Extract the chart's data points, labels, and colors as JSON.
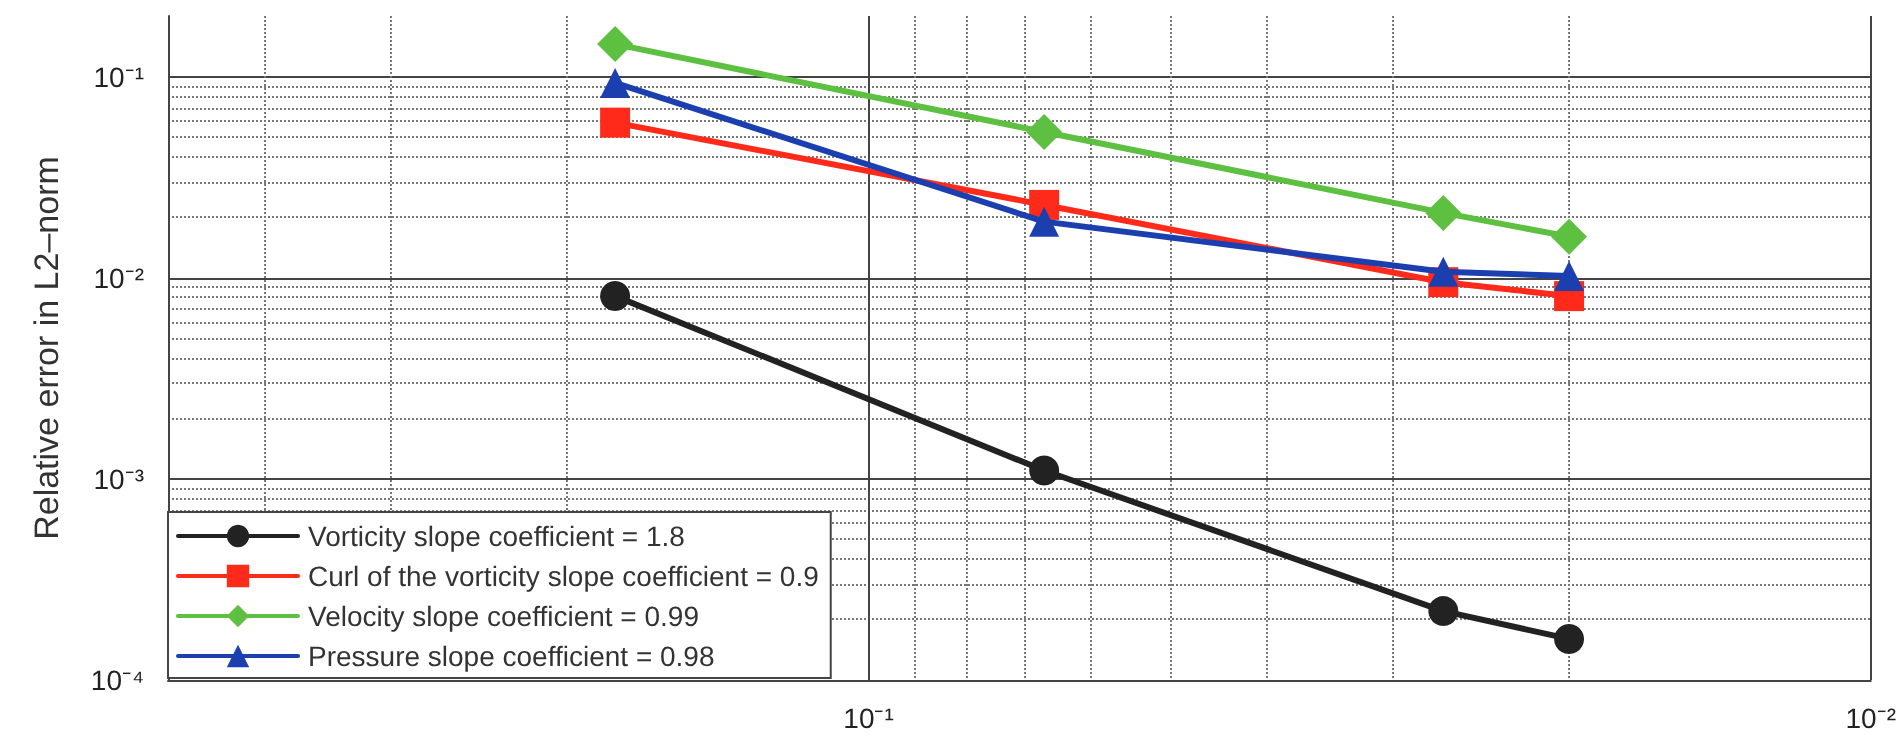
{
  "chart_data": {
    "type": "line",
    "ylabel": "Relative error in L2–norm",
    "log": "xy",
    "grid": true,
    "legend": "bottom left",
    "line_style": "solid",
    "xlim": [
      0.5,
      0.01
    ],
    "xticks": [
      {
        "value": 0.1,
        "label": "10⁻¹"
      },
      {
        "value": 0.01,
        "label": "10⁻²"
      }
    ],
    "ylim": [
      0.0001,
      0.2
    ],
    "yticks": [
      {
        "value": 0.0001,
        "label": "10⁻⁴"
      },
      {
        "value": 0.001,
        "label": "10⁻³"
      },
      {
        "value": 0.01,
        "label": "10⁻²"
      },
      {
        "value": 0.1,
        "label": "10⁻¹"
      }
    ],
    "x": [
      0.179,
      0.0668,
      0.0267,
      0.02
    ],
    "series": [
      {
        "name": "Vorticity slope coefficient = 1.8",
        "color": "#222222",
        "marker": "circle",
        "values": [
          0.0081,
          0.0011,
          0.00022,
          0.00016
        ]
      },
      {
        "name": "Curl of the vorticity slope coefficient = 0.9",
        "color": "#ff2a1a",
        "marker": "square",
        "values": [
          0.059,
          0.023,
          0.0095,
          0.0081
        ]
      },
      {
        "name": "Velocity slope coefficient = 0.99",
        "color": "#5ec040",
        "marker": "diamond",
        "values": [
          0.145,
          0.053,
          0.021,
          0.016
        ]
      },
      {
        "name": "Pressure slope coefficient = 0.98",
        "color": "#1c3fb0",
        "marker": "triangle",
        "values": [
          0.093,
          0.019,
          0.0107,
          0.0102
        ]
      }
    ]
  }
}
